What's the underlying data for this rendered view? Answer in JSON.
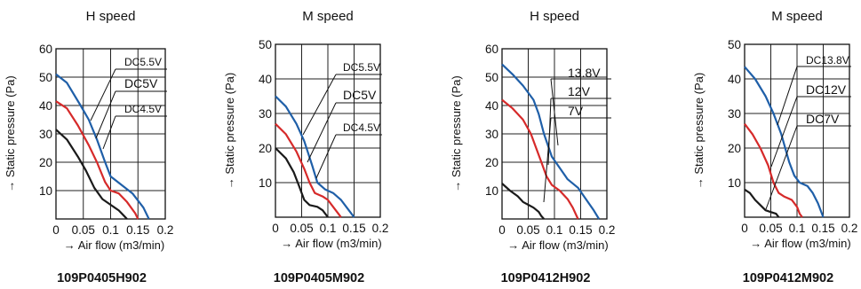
{
  "chart_data": [
    {
      "type": "line",
      "title": "H speed",
      "model": "109P0405H902",
      "xlabel": "→ Air flow (m3/min)",
      "ylabel": "→ Static pressure (Pa)",
      "xlim": [
        0,
        0.2
      ],
      "ylim": [
        0,
        60
      ],
      "x_ticks": [
        "0",
        "0.05",
        "0.1",
        "0.15",
        "0.2"
      ],
      "y_ticks": [
        "10",
        "20",
        "30",
        "40",
        "50",
        "60"
      ],
      "grid": true,
      "series": [
        {
          "name": "DC5.5V",
          "color": "#1f5fa8",
          "points": [
            [
              0,
              51
            ],
            [
              0.02,
              48
            ],
            [
              0.045,
              40
            ],
            [
              0.06,
              35
            ],
            [
              0.075,
              28
            ],
            [
              0.09,
              20
            ],
            [
              0.1,
              15
            ],
            [
              0.12,
              12
            ],
            [
              0.14,
              9
            ],
            [
              0.16,
              4
            ],
            [
              0.17,
              0
            ]
          ]
        },
        {
          "name": "DC5V",
          "color": "#d62a2a",
          "points": [
            [
              0,
              41.5
            ],
            [
              0.02,
              39
            ],
            [
              0.04,
              33
            ],
            [
              0.06,
              26
            ],
            [
              0.075,
              20
            ],
            [
              0.09,
              13
            ],
            [
              0.1,
              10
            ],
            [
              0.115,
              9
            ],
            [
              0.13,
              6
            ],
            [
              0.145,
              2
            ],
            [
              0.15,
              0
            ]
          ]
        },
        {
          "name": "DC4.5V",
          "color": "#1a1a1a",
          "points": [
            [
              0,
              31.5
            ],
            [
              0.02,
              28
            ],
            [
              0.04,
              22
            ],
            [
              0.055,
              17
            ],
            [
              0.07,
              11
            ],
            [
              0.085,
              7
            ],
            [
              0.1,
              5
            ],
            [
              0.115,
              3
            ],
            [
              0.125,
              1
            ],
            [
              0.13,
              0
            ]
          ]
        }
      ]
    },
    {
      "type": "line",
      "title": "M speed",
      "model": "109P0405M902",
      "xlabel": "→ Air flow (m3/min)",
      "ylabel": "→ Static pressure (Pa)",
      "xlim": [
        0,
        0.2
      ],
      "ylim": [
        0,
        50
      ],
      "x_ticks": [
        "0",
        "0.05",
        "0.1",
        "0.15",
        "0.2"
      ],
      "y_ticks": [
        "10",
        "20",
        "30",
        "40",
        "50"
      ],
      "grid": true,
      "series": [
        {
          "name": "DC5.5V",
          "color": "#1f5fa8",
          "points": [
            [
              0,
              35
            ],
            [
              0.02,
              32
            ],
            [
              0.04,
              27
            ],
            [
              0.055,
              22
            ],
            [
              0.07,
              15
            ],
            [
              0.08,
              10
            ],
            [
              0.095,
              8
            ],
            [
              0.11,
              7
            ],
            [
              0.125,
              5
            ],
            [
              0.14,
              2
            ],
            [
              0.15,
              0
            ]
          ]
        },
        {
          "name": "DC5V",
          "color": "#d62a2a",
          "points": [
            [
              0,
              27
            ],
            [
              0.02,
              24
            ],
            [
              0.04,
              19
            ],
            [
              0.055,
              14
            ],
            [
              0.065,
              10
            ],
            [
              0.075,
              7
            ],
            [
              0.09,
              6
            ],
            [
              0.1,
              5
            ],
            [
              0.11,
              3
            ],
            [
              0.12,
              1
            ],
            [
              0.125,
              0
            ]
          ]
        },
        {
          "name": "DC4.5V",
          "color": "#1a1a1a",
          "points": [
            [
              0,
              20
            ],
            [
              0.02,
              17
            ],
            [
              0.035,
              13
            ],
            [
              0.045,
              9
            ],
            [
              0.055,
              5
            ],
            [
              0.065,
              3.5
            ],
            [
              0.08,
              3
            ],
            [
              0.09,
              2
            ],
            [
              0.1,
              0
            ]
          ]
        }
      ]
    },
    {
      "type": "line",
      "title": "H speed",
      "model": "109P0412H902",
      "xlabel": "→ Air flow (m3/min)",
      "ylabel": "→ Static pressure (Pa)",
      "xlim": [
        0,
        0.2
      ],
      "ylim": [
        0,
        60
      ],
      "x_ticks": [
        "0",
        "0.05",
        "0.1",
        "0.15",
        "0.2"
      ],
      "y_ticks": [
        "10",
        "20",
        "30",
        "40",
        "50",
        "60"
      ],
      "grid": true,
      "series": [
        {
          "name": "13.8V",
          "color": "#1f5fa8",
          "points": [
            [
              0,
              54.5
            ],
            [
              0.02,
              51
            ],
            [
              0.04,
              47
            ],
            [
              0.06,
              42
            ],
            [
              0.07,
              37
            ],
            [
              0.08,
              30
            ],
            [
              0.095,
              22
            ],
            [
              0.11,
              18
            ],
            [
              0.125,
              14
            ],
            [
              0.145,
              11
            ],
            [
              0.16,
              7
            ],
            [
              0.175,
              3
            ],
            [
              0.185,
              0
            ]
          ]
        },
        {
          "name": "12V",
          "color": "#d62a2a",
          "points": [
            [
              0,
              42
            ],
            [
              0.02,
              39
            ],
            [
              0.04,
              35
            ],
            [
              0.055,
              30
            ],
            [
              0.065,
              25
            ],
            [
              0.075,
              20
            ],
            [
              0.085,
              15
            ],
            [
              0.095,
              12
            ],
            [
              0.11,
              10
            ],
            [
              0.125,
              7
            ],
            [
              0.135,
              4
            ],
            [
              0.145,
              0
            ]
          ]
        },
        {
          "name": "7V",
          "color": "#1a1a1a",
          "points": [
            [
              0,
              12.5
            ],
            [
              0.015,
              10
            ],
            [
              0.03,
              8
            ],
            [
              0.04,
              6
            ],
            [
              0.05,
              5
            ],
            [
              0.06,
              4
            ],
            [
              0.07,
              2.5
            ],
            [
              0.075,
              1
            ],
            [
              0.08,
              0
            ]
          ]
        }
      ]
    },
    {
      "type": "line",
      "title": "M speed",
      "model": "109P0412M902",
      "xlabel": "→ Air flow (m3/min)",
      "ylabel": "→ Static pressure (Pa)",
      "xlim": [
        0,
        0.2
      ],
      "ylim": [
        0,
        50
      ],
      "x_ticks": [
        "0",
        "0.05",
        "0.1",
        "0.15",
        "0.2"
      ],
      "y_ticks": [
        "10",
        "20",
        "30",
        "40",
        "50"
      ],
      "grid": true,
      "series": [
        {
          "name": "DC13.8V",
          "color": "#1f5fa8",
          "points": [
            [
              0,
              43.5
            ],
            [
              0.02,
              40
            ],
            [
              0.04,
              35
            ],
            [
              0.055,
              30
            ],
            [
              0.07,
              24
            ],
            [
              0.085,
              16
            ],
            [
              0.095,
              12
            ],
            [
              0.105,
              10
            ],
            [
              0.12,
              9
            ],
            [
              0.13,
              7
            ],
            [
              0.14,
              4
            ],
            [
              0.15,
              0
            ]
          ]
        },
        {
          "name": "DC12V",
          "color": "#d62a2a",
          "points": [
            [
              0,
              27
            ],
            [
              0.015,
              24
            ],
            [
              0.03,
              20
            ],
            [
              0.045,
              15
            ],
            [
              0.055,
              10
            ],
            [
              0.065,
              7
            ],
            [
              0.075,
              6
            ],
            [
              0.09,
              5
            ],
            [
              0.1,
              3
            ],
            [
              0.105,
              1
            ],
            [
              0.11,
              0
            ]
          ]
        },
        {
          "name": "DC7V",
          "color": "#1a1a1a",
          "points": [
            [
              0,
              8
            ],
            [
              0.01,
              7
            ],
            [
              0.02,
              5
            ],
            [
              0.03,
              3.5
            ],
            [
              0.04,
              2
            ],
            [
              0.05,
              1.5
            ],
            [
              0.06,
              1
            ],
            [
              0.065,
              0
            ]
          ]
        }
      ]
    }
  ]
}
